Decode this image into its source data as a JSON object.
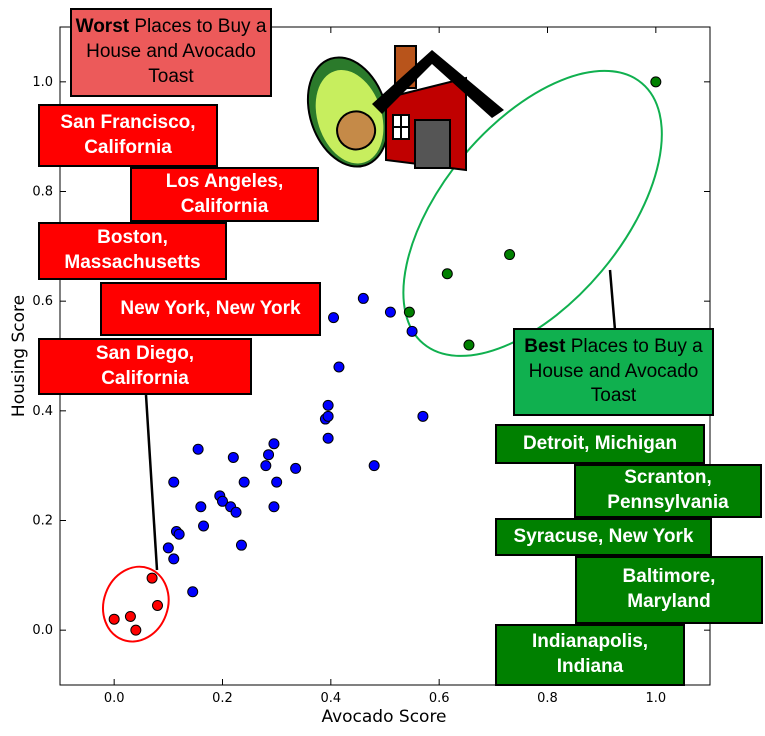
{
  "chart_data": {
    "type": "scatter",
    "xlabel": "Avocado Score",
    "ylabel": "Housing Score",
    "xlim": [
      -0.1,
      1.1
    ],
    "ylim": [
      -0.1,
      1.1
    ],
    "x_ticks": [
      "0.0",
      "0.2",
      "0.4",
      "0.6",
      "0.8",
      "1.0"
    ],
    "y_ticks": [
      "0.0",
      "0.2",
      "0.4",
      "0.6",
      "0.8",
      "1.0"
    ],
    "grid": false,
    "series": [
      {
        "color": "#0000ff",
        "points": [
          [
            0.1,
            0.15
          ],
          [
            0.11,
            0.13
          ],
          [
            0.11,
            0.27
          ],
          [
            0.115,
            0.18
          ],
          [
            0.12,
            0.175
          ],
          [
            0.145,
            0.07
          ],
          [
            0.155,
            0.33
          ],
          [
            0.16,
            0.225
          ],
          [
            0.165,
            0.19
          ],
          [
            0.195,
            0.245
          ],
          [
            0.2,
            0.235
          ],
          [
            0.215,
            0.225
          ],
          [
            0.22,
            0.315
          ],
          [
            0.225,
            0.215
          ],
          [
            0.235,
            0.155
          ],
          [
            0.24,
            0.27
          ],
          [
            0.28,
            0.3
          ],
          [
            0.285,
            0.32
          ],
          [
            0.295,
            0.225
          ],
          [
            0.295,
            0.34
          ],
          [
            0.3,
            0.27
          ],
          [
            0.335,
            0.295
          ],
          [
            0.39,
            0.385
          ],
          [
            0.395,
            0.41
          ],
          [
            0.395,
            0.39
          ],
          [
            0.395,
            0.35
          ],
          [
            0.405,
            0.57
          ],
          [
            0.415,
            0.48
          ],
          [
            0.46,
            0.605
          ],
          [
            0.48,
            0.3
          ],
          [
            0.51,
            0.58
          ],
          [
            0.55,
            0.545
          ],
          [
            0.57,
            0.39
          ]
        ]
      },
      {
        "color": "#ff0000",
        "points": [
          [
            0.0,
            0.02
          ],
          [
            0.03,
            0.025
          ],
          [
            0.04,
            0.0
          ],
          [
            0.07,
            0.095
          ],
          [
            0.08,
            0.045
          ]
        ]
      },
      {
        "color": "#008000",
        "points": [
          [
            0.545,
            0.58
          ],
          [
            0.615,
            0.65
          ],
          [
            0.655,
            0.52
          ],
          [
            0.73,
            0.685
          ],
          [
            1.0,
            1.0
          ]
        ]
      }
    ],
    "annotations": {
      "worst_title_bold": "Worst",
      "worst_title_rest": " Places to Buy a House and Avocado Toast",
      "worst_places": [
        "San Francisco, California",
        "Los Angeles, California",
        "Boston, Massachusetts",
        "New York, New York",
        "San Diego, California"
      ],
      "best_title_bold": "Best",
      "best_title_rest": " Places to Buy a House and Avocado Toast",
      "best_places": [
        "Detroit, Michigan",
        "Scranton, Pennsylvania",
        "Syracuse, New York",
        "Baltimore, Maryland",
        "Indianapolis, Indiana"
      ]
    },
    "colors": {
      "worst_box": "#ff0000",
      "worst_title": "#ec5a5a",
      "best_box": "#008000",
      "best_title": "#10b04f",
      "worst_ellipse": "#ff0000",
      "best_ellipse": "#10b04f"
    },
    "icons": [
      "avocado-icon",
      "house-icon"
    ]
  }
}
